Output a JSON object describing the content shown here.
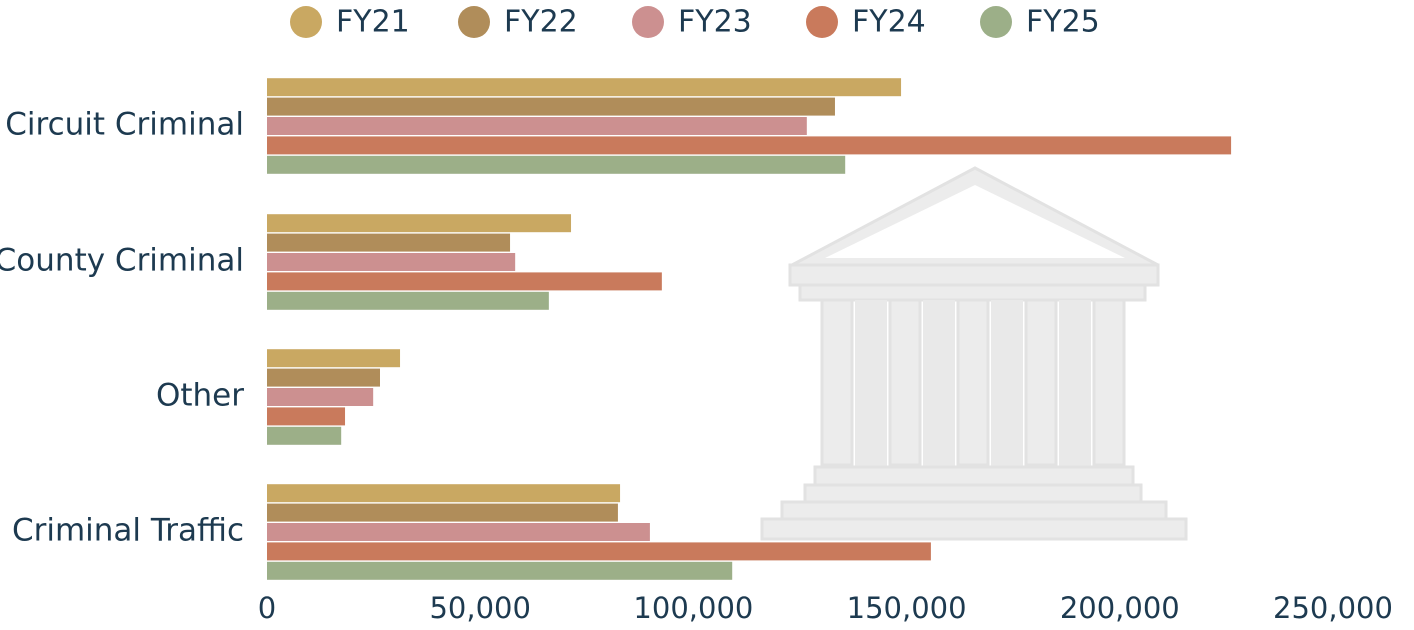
{
  "chart_data": {
    "type": "hbar",
    "categories": [
      "Circuit Criminal",
      "County Criminal",
      "Other",
      "Criminal Traffic"
    ],
    "series": [
      {
        "name": "FY21",
        "color": "#c9a862",
        "values": [
          148700,
          71300,
          31200,
          82800
        ]
      },
      {
        "name": "FY22",
        "color": "#b08d5a",
        "values": [
          133200,
          57000,
          26500,
          82300
        ]
      },
      {
        "name": "FY23",
        "color": "#cc9090",
        "values": [
          126600,
          58200,
          24900,
          89800
        ]
      },
      {
        "name": "FY24",
        "color": "#c97a5c",
        "values": [
          226100,
          92600,
          18300,
          155700
        ]
      },
      {
        "name": "FY25",
        "color": "#9caf88",
        "values": [
          135600,
          66100,
          17400,
          109100
        ]
      }
    ],
    "xlim": [
      0,
      250000
    ],
    "xticks": [
      0,
      {
        "value": 50000,
        "label": "50,000"
      },
      {
        "value": 100000,
        "label": "100,000"
      },
      {
        "value": 150000,
        "label": "150,000"
      },
      {
        "value": 200000,
        "label": "200,000"
      },
      {
        "value": 250000,
        "label": "250,000"
      }
    ],
    "legend": "top"
  }
}
